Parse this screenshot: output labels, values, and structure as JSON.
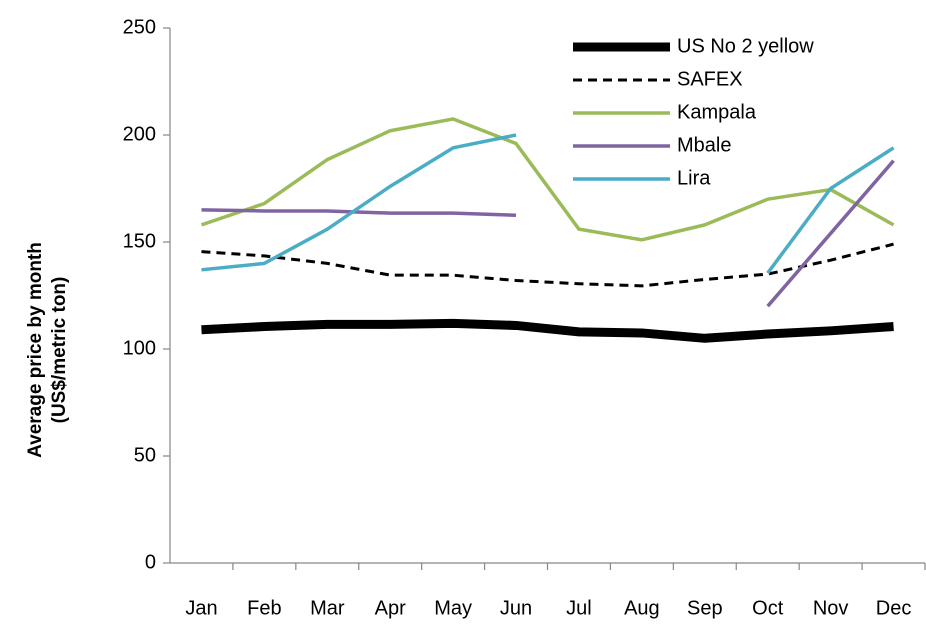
{
  "chart_data": {
    "type": "line",
    "ylabel": [
      "Average price  by month",
      "(US$/metric ton)"
    ],
    "categories": [
      "Jan",
      "Feb",
      "Mar",
      "Apr",
      "May",
      "Jun",
      "Jul",
      "Aug",
      "Sep",
      "Oct",
      "Nov",
      "Dec"
    ],
    "series": [
      {
        "name": "US No 2 yellow",
        "color": "#000000",
        "width": 9,
        "dash": "none",
        "values": [
          109,
          110.5,
          111.5,
          111.5,
          112,
          111,
          108,
          107.5,
          105,
          107,
          108.5,
          110.5
        ]
      },
      {
        "name": "SAFEX",
        "color": "#000000",
        "width": 3,
        "dash": "9 6",
        "values": [
          145.5,
          143.5,
          140,
          134.5,
          134.5,
          132,
          130.5,
          129.5,
          132.5,
          135,
          141.5,
          149
        ]
      },
      {
        "name": "Kampala",
        "color": "#9bbb59",
        "width": 3.5,
        "dash": "none",
        "values": [
          158,
          168,
          188.5,
          202,
          207.5,
          196,
          156,
          151,
          158,
          170,
          174.5,
          158
        ]
      },
      {
        "name": "Mbale",
        "color": "#8064a2",
        "width": 3.5,
        "dash": "none",
        "values": [
          165,
          164.5,
          164.5,
          163.5,
          163.5,
          162.5,
          null,
          null,
          null,
          120,
          154,
          188
        ]
      },
      {
        "name": "Lira",
        "color": "#4bacc6",
        "width": 3.5,
        "dash": "none",
        "values": [
          137,
          140,
          156,
          176,
          194,
          200,
          null,
          null,
          null,
          135.5,
          175,
          194
        ]
      }
    ],
    "ylim": [
      0,
      250
    ],
    "yticks": [
      0,
      50,
      100,
      150,
      200,
      250
    ],
    "grid": false,
    "legend": "top-right"
  }
}
